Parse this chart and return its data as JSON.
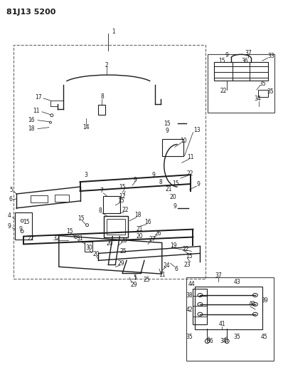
{
  "title": "81J13 5200",
  "bg_color": "#ffffff",
  "line_color": "#1a1a1a",
  "fig_width": 3.98,
  "fig_height": 5.33,
  "dpi": 100
}
